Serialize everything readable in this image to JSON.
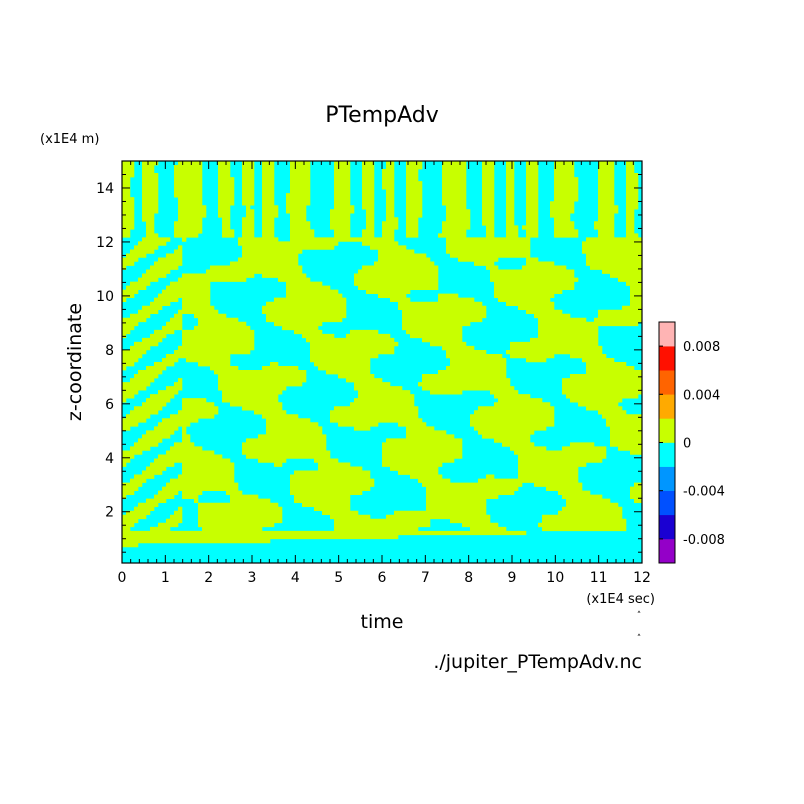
{
  "chart_data": {
    "type": "heatmap",
    "title": "PTempAdv",
    "xlabel": "time",
    "ylabel": "z-coordinate",
    "x_unit": "(x1E4 sec)",
    "y_unit": "(x1E4 m)",
    "xlim": [
      0,
      12
    ],
    "ylim": [
      0.1,
      15
    ],
    "x_ticks": [
      "0",
      "1",
      "2",
      "3",
      "4",
      "5",
      "6",
      "7",
      "8",
      "9",
      "10",
      "11",
      "12"
    ],
    "y_ticks": [
      "2",
      "4",
      "6",
      "8",
      "10",
      "12",
      "14"
    ],
    "grid": false,
    "field_description": "Contour field alternating between the colour bands just below and just above 0 (cyan and yellow-green); vertical striping above z=12, irregular blobs below, a cyan band near the bottom.",
    "colorbar": {
      "levels": [
        -0.01,
        -0.008,
        -0.006,
        -0.004,
        -0.002,
        0,
        0.002,
        0.004,
        0.006,
        0.008,
        0.01
      ],
      "colors": [
        "#9400c8",
        "#1a00d2",
        "#0050ff",
        "#0096ff",
        "#00ffff",
        "#c8ff00",
        "#ffaa00",
        "#ff6400",
        "#ff1000",
        "#ffb4b4"
      ],
      "tick_labels": [
        "-0.008",
        "-0.004",
        "0",
        "0.004",
        "0.008"
      ],
      "tick_values": [
        -0.008,
        -0.004,
        0,
        0.004,
        0.008
      ]
    },
    "source": "./jupiter_PTempAdv.nc"
  }
}
